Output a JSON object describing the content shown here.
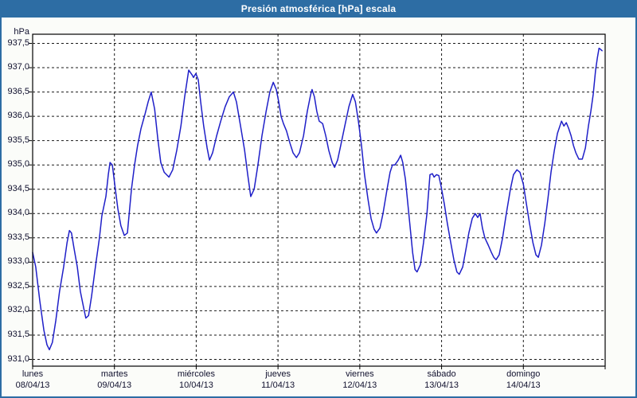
{
  "window": {
    "title": "Presión atmosférica [hPa] escala"
  },
  "colors": {
    "titlebar": "#2d6da4",
    "window_border": "#2d6da4",
    "background": "#fbfcf9",
    "plot_background": "#ffffff",
    "plot_border": "#000000",
    "grid": "#1a1a1a",
    "line": "#1f1fc8",
    "label_text": "#10102e",
    "title_text": "#ffffff"
  },
  "chart_data": {
    "type": "line",
    "title": "Presión atmosférica [hPa] escala",
    "y_unit_label": "hPa",
    "ylabel": "hPa",
    "xlabel": "",
    "ylim": [
      931.0,
      937.5
    ],
    "ytick_step": 0.5,
    "yticks": [
      937.5,
      937.0,
      936.5,
      936.0,
      935.5,
      935.0,
      934.5,
      934.0,
      933.5,
      933.0,
      932.5,
      932.0,
      931.5,
      931.0
    ],
    "ytick_labels": [
      "937,5",
      "937,0",
      "936,5",
      "936,0",
      "935,5",
      "935,0",
      "934,5",
      "934,0",
      "933,5",
      "933,0",
      "932,5",
      "932,0",
      "931,5",
      "931,0"
    ],
    "grid": "dashed",
    "legend_position": "none",
    "x_total_days": 7,
    "x_days": [
      {
        "name": "lunes",
        "date": "08/04/13"
      },
      {
        "name": "martes",
        "date": "09/04/13"
      },
      {
        "name": "miércoles",
        "date": "10/04/13"
      },
      {
        "name": "jueves",
        "date": "11/04/13"
      },
      {
        "name": "viernes",
        "date": "12/04/13"
      },
      {
        "name": "sábado",
        "date": "13/04/13"
      },
      {
        "name": "domingo",
        "date": "14/04/13"
      }
    ],
    "series": [
      {
        "name": "Presión atmosférica",
        "color": "#1f1fc8",
        "x_unit": "hours_from_monday_00:00",
        "points": [
          [
            0,
            933.2
          ],
          [
            0.9,
            932.9
          ],
          [
            2.1,
            932.2
          ],
          [
            3.3,
            931.6
          ],
          [
            4.2,
            931.3
          ],
          [
            4.9,
            931.2
          ],
          [
            5.8,
            931.35
          ],
          [
            6.8,
            931.8
          ],
          [
            7.9,
            932.4
          ],
          [
            9.1,
            932.9
          ],
          [
            10.1,
            933.4
          ],
          [
            10.8,
            933.65
          ],
          [
            11.4,
            933.6
          ],
          [
            12.1,
            933.3
          ],
          [
            13.1,
            932.9
          ],
          [
            14,
            932.4
          ],
          [
            15,
            932.05
          ],
          [
            15.6,
            931.85
          ],
          [
            16.4,
            931.9
          ],
          [
            17.3,
            932.3
          ],
          [
            18.5,
            932.95
          ],
          [
            19.6,
            933.5
          ],
          [
            20.3,
            933.95
          ],
          [
            21.5,
            934.35
          ],
          [
            22.2,
            934.8
          ],
          [
            22.7,
            935.05
          ],
          [
            23.4,
            935
          ],
          [
            24.1,
            934.6
          ],
          [
            25,
            934.1
          ],
          [
            25.9,
            933.75
          ],
          [
            26.9,
            933.55
          ],
          [
            27.8,
            933.6
          ],
          [
            29,
            934.5
          ],
          [
            29.9,
            935
          ],
          [
            30.8,
            935.4
          ],
          [
            31.8,
            935.75
          ],
          [
            33,
            936.05
          ],
          [
            33.9,
            936.3
          ],
          [
            34.8,
            936.5
          ],
          [
            35.8,
            936.15
          ],
          [
            36.7,
            935.55
          ],
          [
            37.6,
            935.05
          ],
          [
            38.6,
            934.85
          ],
          [
            40,
            934.75
          ],
          [
            41.1,
            934.9
          ],
          [
            42.3,
            935.3
          ],
          [
            43.5,
            935.8
          ],
          [
            44.6,
            936.4
          ],
          [
            45.8,
            936.95
          ],
          [
            46.8,
            936.85
          ],
          [
            47.2,
            936.8
          ],
          [
            47.9,
            936.88
          ],
          [
            48.6,
            936.75
          ],
          [
            49.3,
            936.3
          ],
          [
            50.2,
            935.8
          ],
          [
            51.2,
            935.35
          ],
          [
            51.9,
            935.1
          ],
          [
            52.8,
            935.25
          ],
          [
            54,
            935.6
          ],
          [
            55.2,
            935.9
          ],
          [
            56.5,
            936.2
          ],
          [
            57.7,
            936.4
          ],
          [
            58.9,
            936.5
          ],
          [
            59.8,
            936.3
          ],
          [
            61,
            935.8
          ],
          [
            62.2,
            935.3
          ],
          [
            63.1,
            934.8
          ],
          [
            64,
            934.35
          ],
          [
            65,
            934.5
          ],
          [
            66.1,
            935
          ],
          [
            67.3,
            935.6
          ],
          [
            68.5,
            936.1
          ],
          [
            69.6,
            936.5
          ],
          [
            70.6,
            936.7
          ],
          [
            71.5,
            936.55
          ],
          [
            72.2,
            936.3
          ],
          [
            72.9,
            936
          ],
          [
            73.6,
            935.85
          ],
          [
            74.5,
            935.7
          ],
          [
            75.5,
            935.45
          ],
          [
            76.4,
            935.25
          ],
          [
            77.4,
            935.15
          ],
          [
            78.3,
            935.25
          ],
          [
            79.5,
            935.6
          ],
          [
            80.6,
            936.1
          ],
          [
            81.6,
            936.45
          ],
          [
            82,
            936.55
          ],
          [
            82.7,
            936.4
          ],
          [
            83.4,
            936.1
          ],
          [
            84.1,
            935.9
          ],
          [
            85.1,
            935.85
          ],
          [
            86,
            935.6
          ],
          [
            86.9,
            935.3
          ],
          [
            87.9,
            935.05
          ],
          [
            88.6,
            934.95
          ],
          [
            89.5,
            935.1
          ],
          [
            90.4,
            935.4
          ],
          [
            91.6,
            935.8
          ],
          [
            92.8,
            936.2
          ],
          [
            93.9,
            936.45
          ],
          [
            94.7,
            936.3
          ],
          [
            95.6,
            935.9
          ],
          [
            96.5,
            935.4
          ],
          [
            97.4,
            934.8
          ],
          [
            98.4,
            934.3
          ],
          [
            99.3,
            933.9
          ],
          [
            100.2,
            933.68
          ],
          [
            100.9,
            933.6
          ],
          [
            101.9,
            933.7
          ],
          [
            102.8,
            934
          ],
          [
            104,
            934.5
          ],
          [
            104.9,
            934.85
          ],
          [
            105.6,
            935
          ],
          [
            106.3,
            935
          ],
          [
            107.3,
            935.1
          ],
          [
            108,
            935.2
          ],
          [
            108.6,
            935.05
          ],
          [
            109.4,
            934.7
          ],
          [
            110.1,
            934.2
          ],
          [
            110.8,
            933.7
          ],
          [
            111.5,
            933.2
          ],
          [
            112.2,
            932.85
          ],
          [
            112.8,
            932.8
          ],
          [
            113.8,
            932.95
          ],
          [
            114.7,
            933.4
          ],
          [
            115.7,
            934
          ],
          [
            116.6,
            934.8
          ],
          [
            117.3,
            934.82
          ],
          [
            117.8,
            934.75
          ],
          [
            118.5,
            934.8
          ],
          [
            119.2,
            934.78
          ],
          [
            119.9,
            934.55
          ],
          [
            120.8,
            934.2
          ],
          [
            121.7,
            933.8
          ],
          [
            122.7,
            933.4
          ],
          [
            123.6,
            933.05
          ],
          [
            124.5,
            932.8
          ],
          [
            125.2,
            932.75
          ],
          [
            126.2,
            932.9
          ],
          [
            127.1,
            933.25
          ],
          [
            128,
            933.6
          ],
          [
            129,
            933.9
          ],
          [
            129.9,
            934
          ],
          [
            130.6,
            933.92
          ],
          [
            131.3,
            934
          ],
          [
            132,
            933.7
          ],
          [
            132.7,
            933.5
          ],
          [
            133.7,
            933.35
          ],
          [
            134.6,
            933.2
          ],
          [
            135.3,
            933.1
          ],
          [
            136,
            933.05
          ],
          [
            136.9,
            933.15
          ],
          [
            137.9,
            933.5
          ],
          [
            139,
            934
          ],
          [
            140.2,
            934.5
          ],
          [
            141.1,
            934.8
          ],
          [
            142.1,
            934.9
          ],
          [
            143,
            934.85
          ],
          [
            144,
            934.6
          ],
          [
            144.9,
            934.2
          ],
          [
            145.8,
            933.8
          ],
          [
            146.8,
            933.4
          ],
          [
            147.7,
            933.15
          ],
          [
            148.4,
            933.1
          ],
          [
            149.3,
            933.35
          ],
          [
            150.3,
            933.8
          ],
          [
            151.2,
            934.3
          ],
          [
            152.1,
            934.85
          ],
          [
            153.1,
            935.3
          ],
          [
            154,
            935.65
          ],
          [
            155.2,
            935.9
          ],
          [
            155.9,
            935.8
          ],
          [
            156.6,
            935.87
          ],
          [
            157.3,
            935.75
          ],
          [
            158,
            935.6
          ],
          [
            158.7,
            935.4
          ],
          [
            159.4,
            935.25
          ],
          [
            160.3,
            935.12
          ],
          [
            161.3,
            935.12
          ],
          [
            162.2,
            935.35
          ],
          [
            163.1,
            935.8
          ],
          [
            163.8,
            936.1
          ],
          [
            164.5,
            936.45
          ],
          [
            165.2,
            936.95
          ],
          [
            165.7,
            937.2
          ],
          [
            166.2,
            937.4
          ],
          [
            166.6,
            937.38
          ],
          [
            167.1,
            937.35
          ]
        ]
      }
    ]
  }
}
